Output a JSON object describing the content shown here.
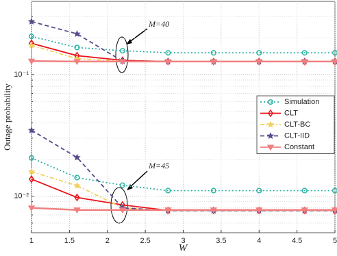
{
  "chart_data": {
    "type": "line",
    "xlabel": "W",
    "ylabel": "Outage probability",
    "log_y": true,
    "grid": true,
    "legend": "right",
    "x": [
      1,
      1.6,
      2.2,
      2.8,
      3.4,
      4,
      4.6,
      5
    ],
    "xlim": [
      1,
      5
    ],
    "xticks": [
      1,
      1.5,
      2,
      2.5,
      3,
      3.5,
      4,
      4.5,
      5
    ],
    "ylim": [
      0.005,
      0.4
    ],
    "yticks": [
      {
        "value": 0.01,
        "label": "10⁻²"
      },
      {
        "value": 0.1,
        "label": "10⁻¹"
      }
    ],
    "minor_yticks": [
      0.006,
      0.007,
      0.008,
      0.009,
      0.02,
      0.03,
      0.04,
      0.05,
      0.06,
      0.07,
      0.08,
      0.09,
      0.2,
      0.3
    ],
    "series": [
      {
        "name": "Simulation",
        "color": "#2bb3a3",
        "marker": "circle",
        "dash": "2,3",
        "curves": [
          [
            0.206,
            0.167,
            0.157,
            0.151,
            0.151,
            0.151,
            0.151,
            0.151
          ],
          [
            0.0206,
            0.0142,
            0.0123,
            0.0111,
            0.0111,
            0.0111,
            0.0111,
            0.0111
          ]
        ]
      },
      {
        "name": "CLT",
        "color": "#e8141c",
        "marker": "diamond",
        "dash": "none",
        "curves": [
          [
            0.181,
            0.143,
            0.131,
            0.128,
            0.128,
            0.128,
            0.128,
            0.128
          ],
          [
            0.0138,
            0.00975,
            0.00846,
            0.00763,
            0.00763,
            0.00763,
            0.00763,
            0.00763
          ]
        ]
      },
      {
        "name": "CLT-BC",
        "color": "#f0d060",
        "marker": "star",
        "dash": "6,3,2,3",
        "curves": [
          [
            0.174,
            0.135,
            0.129,
            0.128,
            0.128,
            0.128,
            0.128,
            0.128
          ],
          [
            0.0159,
            0.0122,
            0.00802,
            0.00763,
            0.00763,
            0.00763,
            0.00763,
            0.00763
          ]
        ]
      },
      {
        "name": "CLT-IID",
        "color": "#5a4a8a",
        "marker": "star",
        "dash": "6,4",
        "curves": [
          [
            0.273,
            0.216,
            0.129,
            0.128,
            0.128,
            0.128,
            0.128,
            0.128
          ],
          [
            0.0348,
            0.0208,
            0.008,
            0.0076,
            0.0076,
            0.0076,
            0.0076,
            0.0076
          ]
        ]
      },
      {
        "name": "Constant",
        "color": "#f08080",
        "marker": "triangle",
        "dash": "none",
        "curves": [
          [
            0.129,
            0.128,
            0.128,
            0.128,
            0.128,
            0.128,
            0.128,
            0.128
          ],
          [
            0.008,
            0.0077,
            0.0077,
            0.0077,
            0.0077,
            0.0077,
            0.0077,
            0.0077
          ]
        ]
      }
    ],
    "annotations": [
      {
        "text": "M=40"
      },
      {
        "text": "M=45"
      }
    ]
  }
}
